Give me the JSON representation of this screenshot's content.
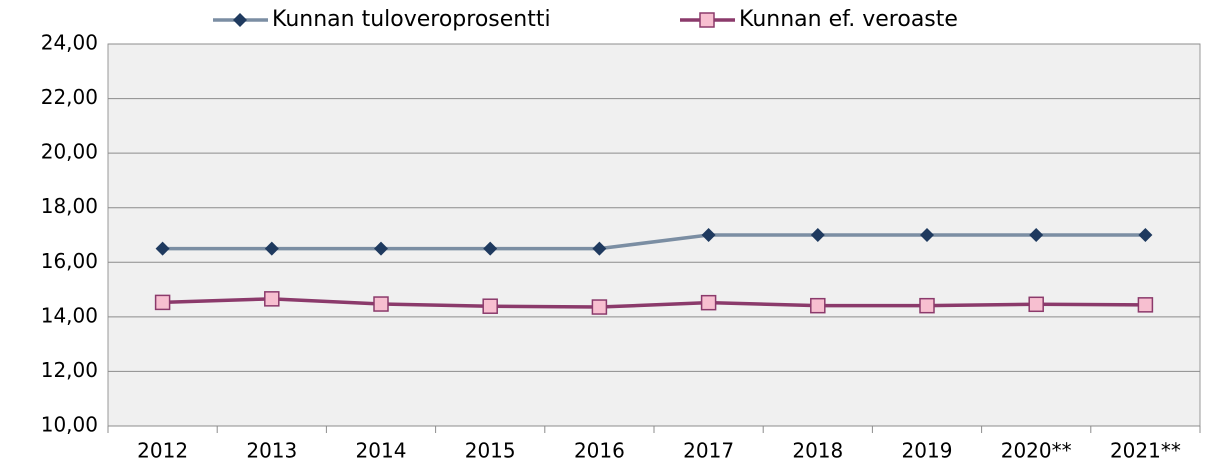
{
  "chart_data": {
    "type": "line",
    "categories": [
      "2012",
      "2013",
      "2014",
      "2015",
      "2016",
      "2017",
      "2018",
      "2019",
      "2020**",
      "2021**"
    ],
    "series": [
      {
        "name": "Kunnan tuloveroprosentti",
        "color": "#7b8ea3",
        "marker": "diamond",
        "marker_color": "#1f3a5f",
        "values": [
          16.5,
          16.5,
          16.5,
          16.5,
          16.5,
          17,
          17,
          17,
          17,
          17
        ]
      },
      {
        "name": "Kunnan ef. veroaste",
        "color": "#8b3a6b",
        "marker": "square",
        "marker_color": "#f7bfd0",
        "values": [
          14.53,
          14.66,
          14.47,
          14.39,
          14.36,
          14.52,
          14.41,
          14.41,
          14.46,
          14.44
        ]
      }
    ],
    "ylim": [
      10,
      24
    ],
    "yticks": [
      {
        "value": 10,
        "label": "10,00"
      },
      {
        "value": 12,
        "label": "12,00"
      },
      {
        "value": 14,
        "label": "14,00"
      },
      {
        "value": 16,
        "label": "16,00"
      },
      {
        "value": 18,
        "label": "18,00"
      },
      {
        "value": 20,
        "label": "20,00"
      },
      {
        "value": 22,
        "label": "22,00"
      },
      {
        "value": 24,
        "label": "24,00"
      }
    ],
    "grid": true,
    "legend": "top"
  }
}
